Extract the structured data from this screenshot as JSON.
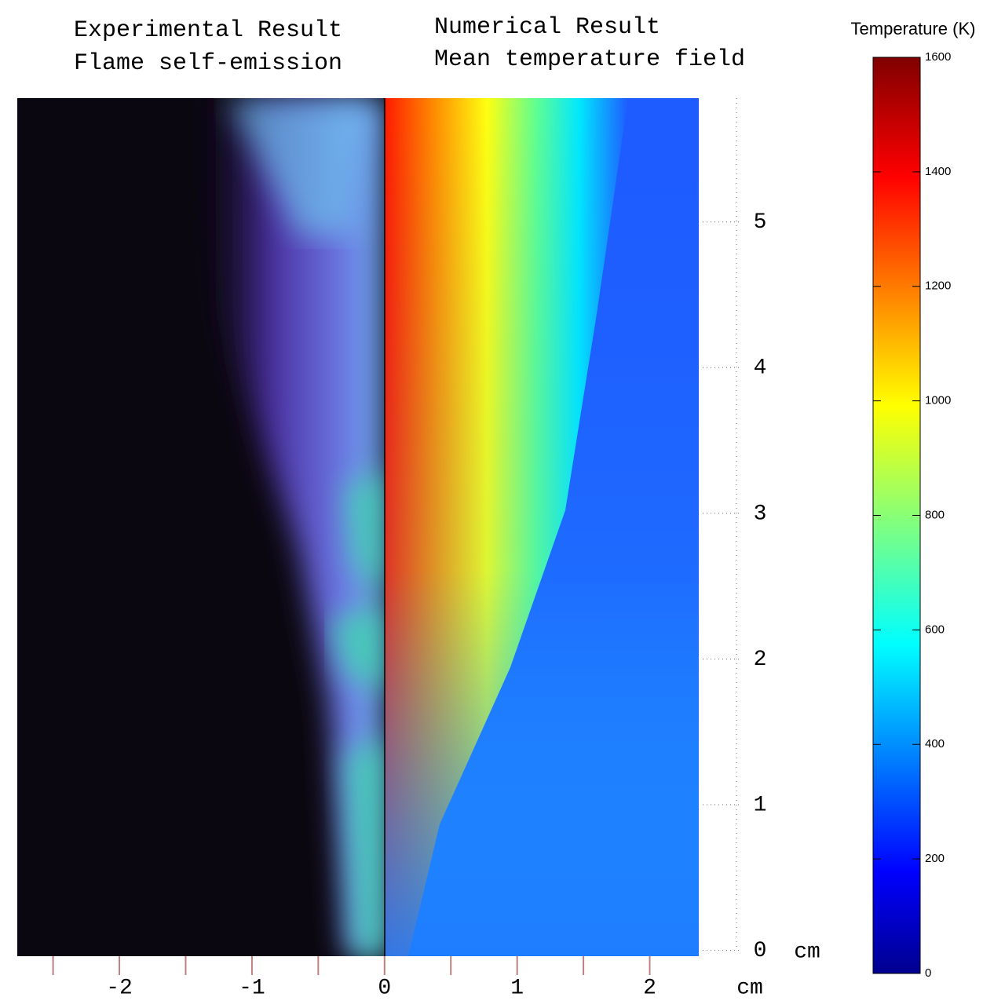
{
  "chart_data": {
    "type": "contour",
    "left_title": [
      "Experimental Result",
      "Flame self-emission"
    ],
    "right_title": [
      "Numerical Result",
      "Mean temperature field"
    ],
    "xlabel": "cm",
    "ylabel": "cm",
    "xlim": [
      -2.77,
      2.37
    ],
    "xticks": [
      -2,
      -1,
      0,
      1,
      2
    ],
    "xminorticks": [
      -2.5,
      -1.5,
      -0.5,
      0.5,
      1.5
    ],
    "ylim": [
      -0.04,
      5.85
    ],
    "yticks": [
      0,
      1,
      2,
      3,
      4,
      5
    ],
    "colorbar_label": "Temperature (K)",
    "clim": [
      0,
      1600
    ],
    "cticks": [
      0,
      200,
      400,
      600,
      800,
      1000,
      1200,
      1400,
      1600
    ],
    "colormap": "jet"
  }
}
